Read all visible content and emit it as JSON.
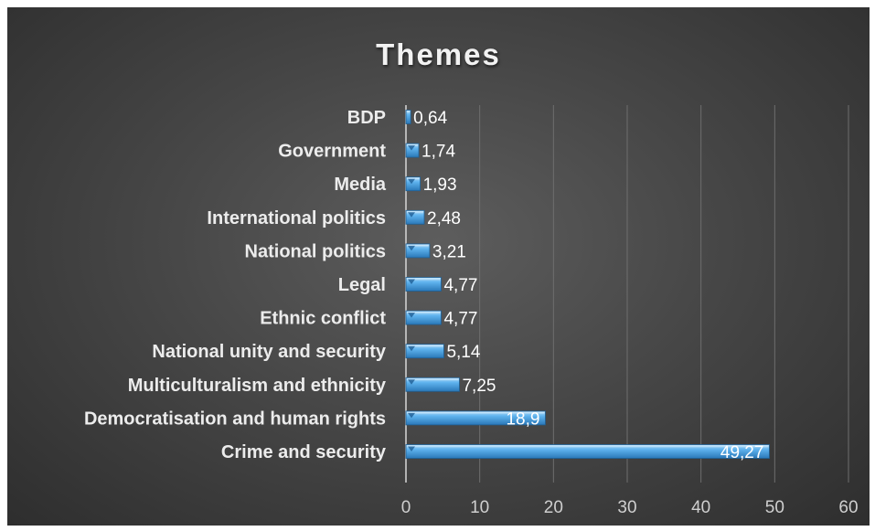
{
  "chart_data": {
    "type": "bar",
    "orientation": "horizontal",
    "title": "Themes",
    "categories": [
      "BDP",
      "Government",
      "Media",
      "International politics",
      "National politics",
      "Legal",
      "Ethnic conflict",
      "National unity and security",
      "Multiculturalism and ethnicity",
      "Democratisation and human rights",
      "Crime and security"
    ],
    "values": [
      0.64,
      1.74,
      1.93,
      2.48,
      3.21,
      4.77,
      4.77,
      5.14,
      7.25,
      18.9,
      49.27
    ],
    "data_labels": [
      "0,64",
      "1,74",
      "1,93",
      "2,48",
      "3,21",
      "4,77",
      "4,77",
      "5,14",
      "7,25",
      "18,9",
      "49,27"
    ],
    "xlim": [
      0,
      60
    ],
    "xticks": [
      0,
      10,
      20,
      30,
      40,
      50,
      60
    ],
    "xtick_labels": [
      "0",
      "10",
      "20",
      "30",
      "40",
      "50",
      "60"
    ],
    "grid": "vertical",
    "legend": "none",
    "colors": {
      "background_center": "#5d5d5d",
      "background_edge": "#2e2e2e",
      "bar": "#4aa6e6",
      "bar_light": "#a6d8fb",
      "category_label": "#ececec",
      "data_label": "#ffffff",
      "gridline": "#6e6e6e",
      "tick_label": "#cfcfcf"
    }
  }
}
